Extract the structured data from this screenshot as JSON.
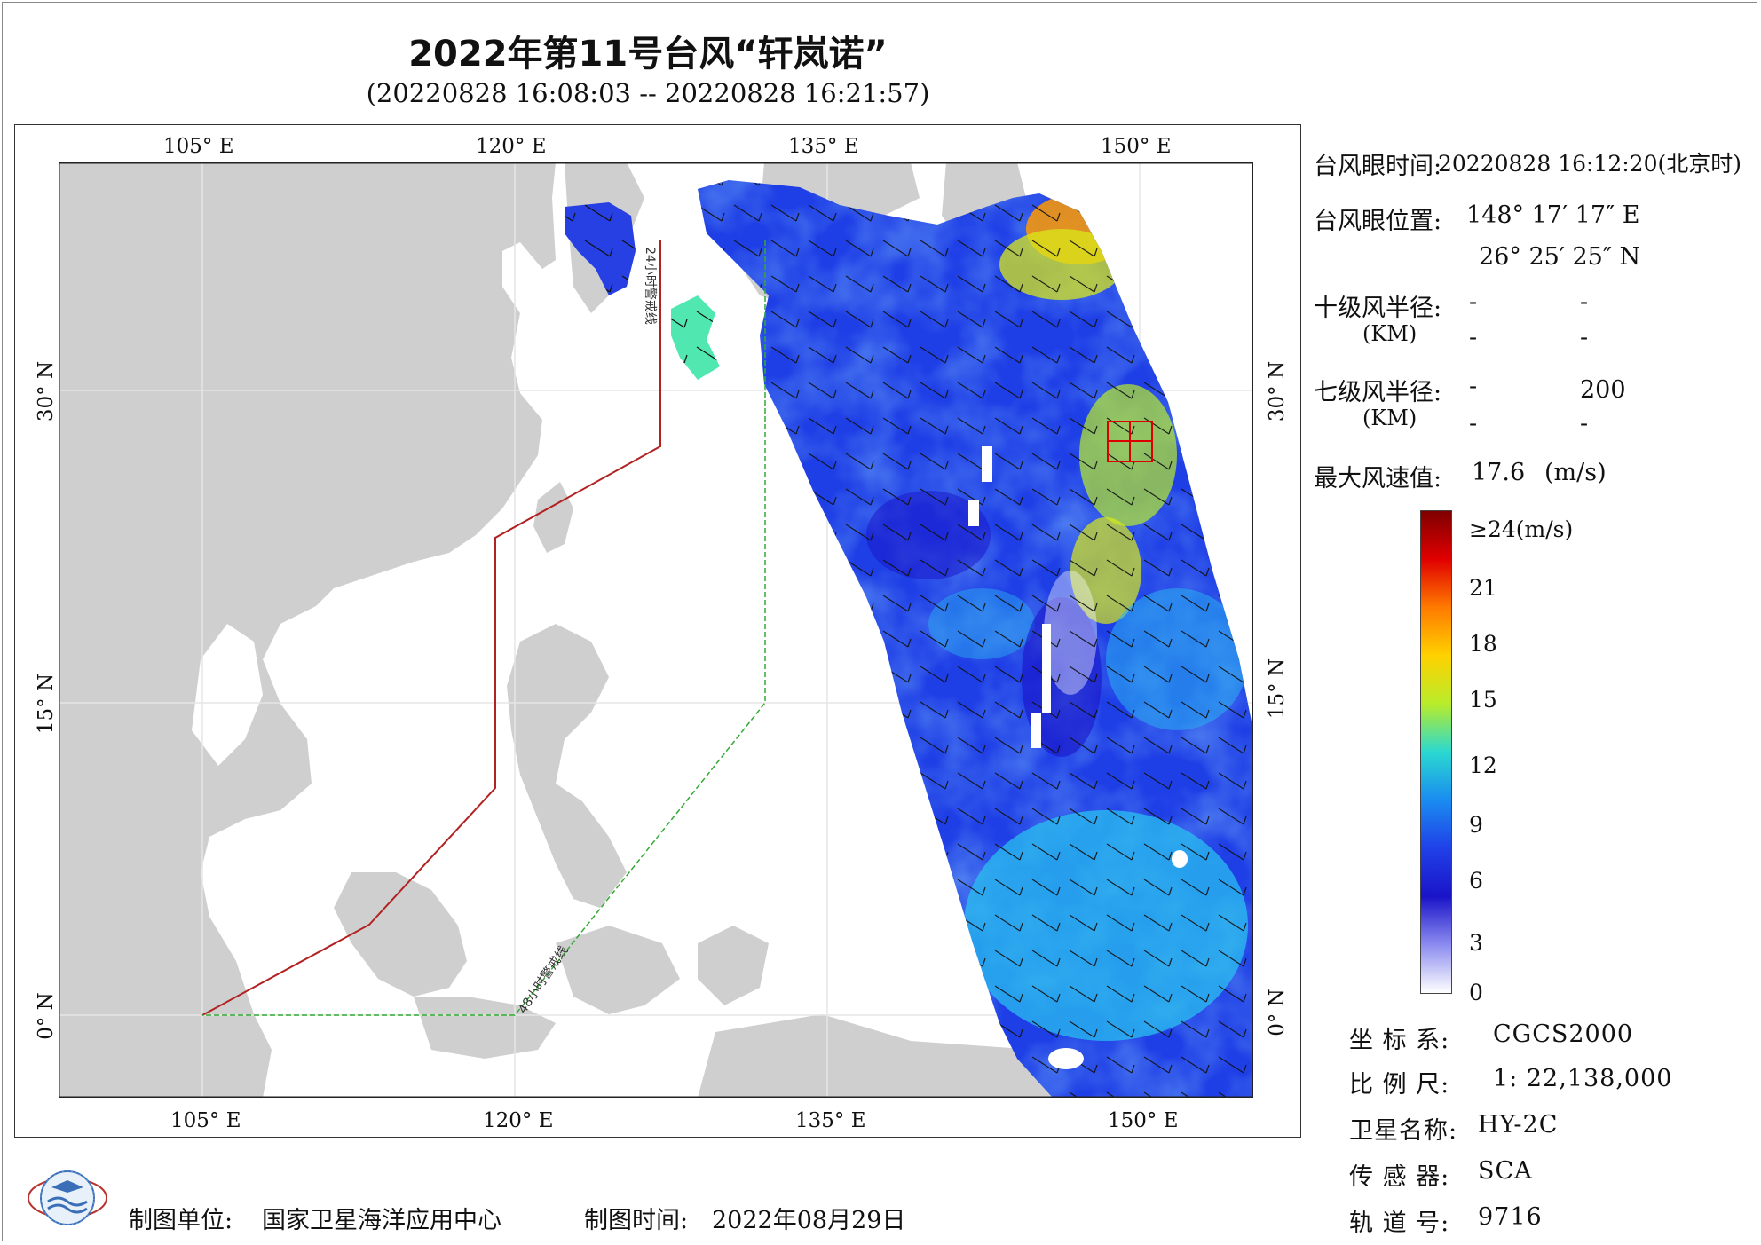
{
  "title": "2022年第11号台风“轩岚诺”",
  "subtitle": "(20220828 16:08:03 -- 20220828 16:21:57)",
  "axes": {
    "lon_top": [
      "105° E",
      "120° E",
      "135° E",
      "150° E"
    ],
    "lon_bottom": [
      "105° E",
      "120° E",
      "135° E",
      "150° E"
    ],
    "lat_left": [
      "30° N",
      "15° N",
      "0° N"
    ],
    "lat_right": [
      "30° N",
      "15° N",
      "0° N"
    ]
  },
  "warning_lines": {
    "line_24h": {
      "label": "24小时警戒线",
      "color": "#b22222"
    },
    "line_48h": {
      "label": "48小时警戒线",
      "color": "#33aa33"
    }
  },
  "info": {
    "eye_time_label": "台风眼时间:",
    "eye_time_value": "20220828 16:12:20(北京时)",
    "eye_pos_label": "台风眼位置:",
    "eye_lon": "148° 17′ 17″ E",
    "eye_lat": "26° 25′ 25″ N",
    "r10_label": "十级风半径:",
    "r10_unit": "(KM)",
    "r10_values": [
      "-",
      "-",
      "-",
      "-"
    ],
    "r7_label": "七级风半径:",
    "r7_unit": "(KM)",
    "r7_values": [
      "-",
      "200",
      "-",
      "-"
    ],
    "max_wind_label": "最大风速值:",
    "max_wind_value": "17.6",
    "max_wind_unit": "(m/s)"
  },
  "colorbar": {
    "top_label": "≥24(m/s)",
    "ticks": [
      "21",
      "18",
      "15",
      "12",
      "9",
      "6",
      "3",
      "0"
    ],
    "stops": [
      "#7f0000",
      "#e00000",
      "#ff7a00",
      "#ffd200",
      "#b8ec2a",
      "#2ad8d0",
      "#1a8cf0",
      "#2040e8",
      "#1a14c8",
      "#8c8cf0",
      "#ffffff"
    ]
  },
  "meta": {
    "crs_label": "坐 标 系:",
    "crs_value": "CGCS2000",
    "scale_label": "比 例 尺:",
    "scale_value": "1: 22,138,000",
    "satellite_label": "卫星名称:",
    "satellite_value": "HY-2C",
    "sensor_label": "传 感 器:",
    "sensor_value": "SCA",
    "orbit_label": "轨 道 号:",
    "orbit_value": "9716"
  },
  "footer": {
    "unit_label": "制图单位:",
    "unit_value": "国家卫星海洋应用中心",
    "time_label": "制图时间:",
    "time_value": "2022年08月29日"
  },
  "colors": {
    "land": "#cfcfcf",
    "ocean": "#ffffff",
    "grid": "#e6e6e6",
    "eye_box": "#dd0000"
  }
}
